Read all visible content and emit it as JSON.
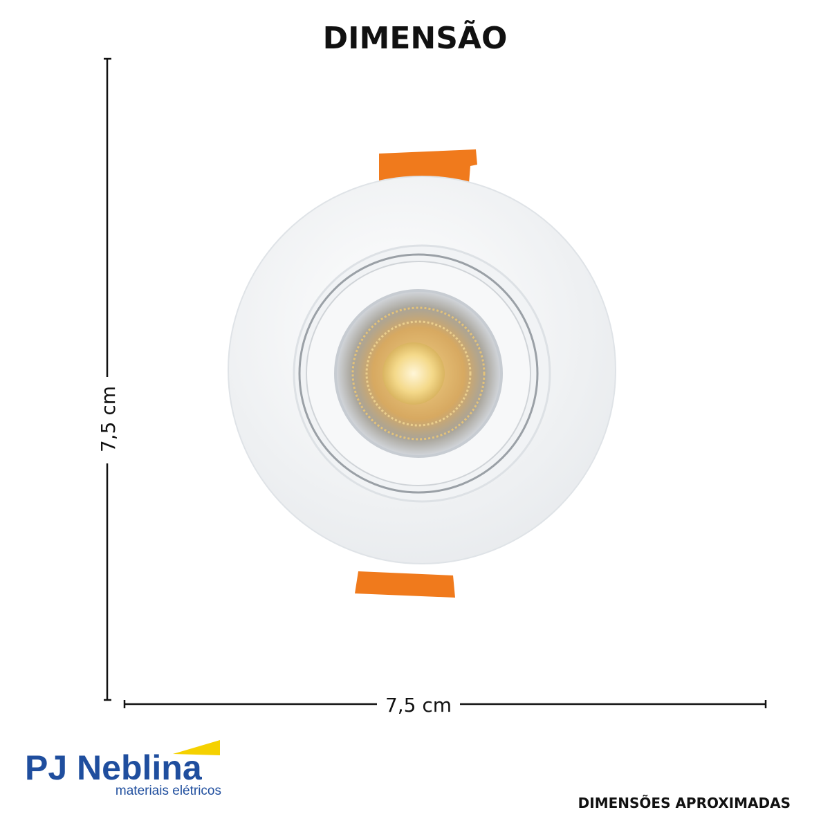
{
  "header": {
    "title": "DIMENSÃO"
  },
  "dimensions": {
    "height": "7,5 cm",
    "width": "7,5 cm"
  },
  "logo": {
    "name": "PJ Neblina",
    "tagline": "materiais elétricos"
  },
  "footer": {
    "note": "DIMENSÕES APROXIMADAS"
  }
}
